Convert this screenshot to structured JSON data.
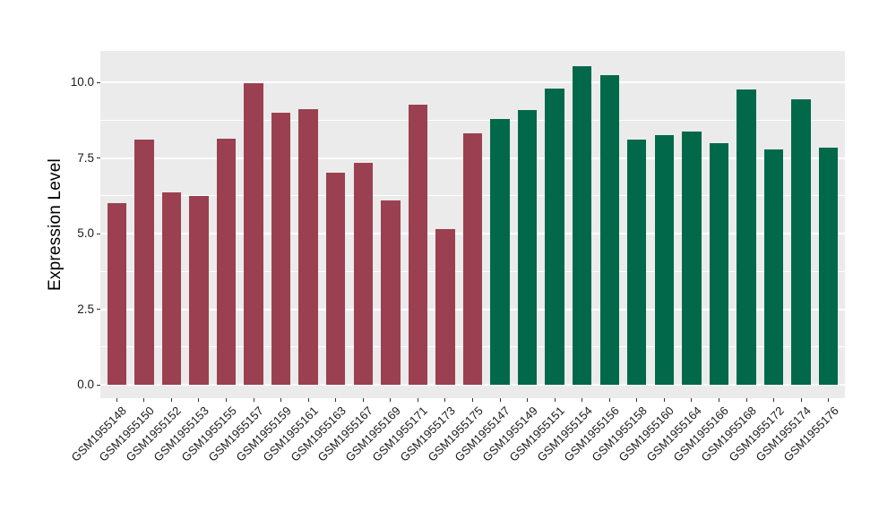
{
  "chart_data": {
    "type": "bar",
    "title": "",
    "ylabel": "Expression Level",
    "xlabel": "",
    "ylim": [
      -0.44,
      11.04
    ],
    "yticks": [
      0.0,
      2.5,
      5.0,
      7.5,
      10.0
    ],
    "ytick_labels": [
      "0.0",
      "2.5",
      "5.0",
      "7.5",
      "10.0"
    ],
    "yticks_minor": [
      1.25,
      3.75,
      6.25,
      8.75
    ],
    "grid": true,
    "legend_position": "none",
    "panel_bg": "#EBEBEB",
    "grid_color": "#FFFFFF",
    "tick_color": "#333333",
    "axis_text_color": "#1A1A1A",
    "groups": {
      "group1": {
        "color": "#9B4050"
      },
      "group2": {
        "color": "#01694A"
      }
    },
    "bars": [
      {
        "label": "GSM1955148",
        "value": 6.0,
        "group": "group1"
      },
      {
        "label": "GSM1955150",
        "value": 8.1,
        "group": "group1"
      },
      {
        "label": "GSM1955152",
        "value": 6.35,
        "group": "group1"
      },
      {
        "label": "GSM1955153",
        "value": 6.25,
        "group": "group1"
      },
      {
        "label": "GSM1955155",
        "value": 8.15,
        "group": "group1"
      },
      {
        "label": "GSM1955157",
        "value": 9.97,
        "group": "group1"
      },
      {
        "label": "GSM1955159",
        "value": 9.0,
        "group": "group1"
      },
      {
        "label": "GSM1955161",
        "value": 9.1,
        "group": "group1"
      },
      {
        "label": "GSM1955163",
        "value": 7.0,
        "group": "group1"
      },
      {
        "label": "GSM1955167",
        "value": 7.35,
        "group": "group1"
      },
      {
        "label": "GSM1955169",
        "value": 6.1,
        "group": "group1"
      },
      {
        "label": "GSM1955171",
        "value": 9.25,
        "group": "group1"
      },
      {
        "label": "GSM1955173",
        "value": 5.15,
        "group": "group1"
      },
      {
        "label": "GSM1955175",
        "value": 8.3,
        "group": "group1"
      },
      {
        "label": "GSM1955147",
        "value": 8.78,
        "group": "group2"
      },
      {
        "label": "GSM1955149",
        "value": 9.08,
        "group": "group2"
      },
      {
        "label": "GSM1955151",
        "value": 9.8,
        "group": "group2"
      },
      {
        "label": "GSM1955154",
        "value": 10.52,
        "group": "group2"
      },
      {
        "label": "GSM1955156",
        "value": 10.23,
        "group": "group2"
      },
      {
        "label": "GSM1955158",
        "value": 8.1,
        "group": "group2"
      },
      {
        "label": "GSM1955160",
        "value": 8.26,
        "group": "group2"
      },
      {
        "label": "GSM1955164",
        "value": 8.37,
        "group": "group2"
      },
      {
        "label": "GSM1955166",
        "value": 8.0,
        "group": "group2"
      },
      {
        "label": "GSM1955168",
        "value": 9.77,
        "group": "group2"
      },
      {
        "label": "GSM1955172",
        "value": 7.78,
        "group": "group2"
      },
      {
        "label": "GSM1955174",
        "value": 9.45,
        "group": "group2"
      },
      {
        "label": "GSM1955176",
        "value": 7.83,
        "group": "group2"
      }
    ]
  }
}
